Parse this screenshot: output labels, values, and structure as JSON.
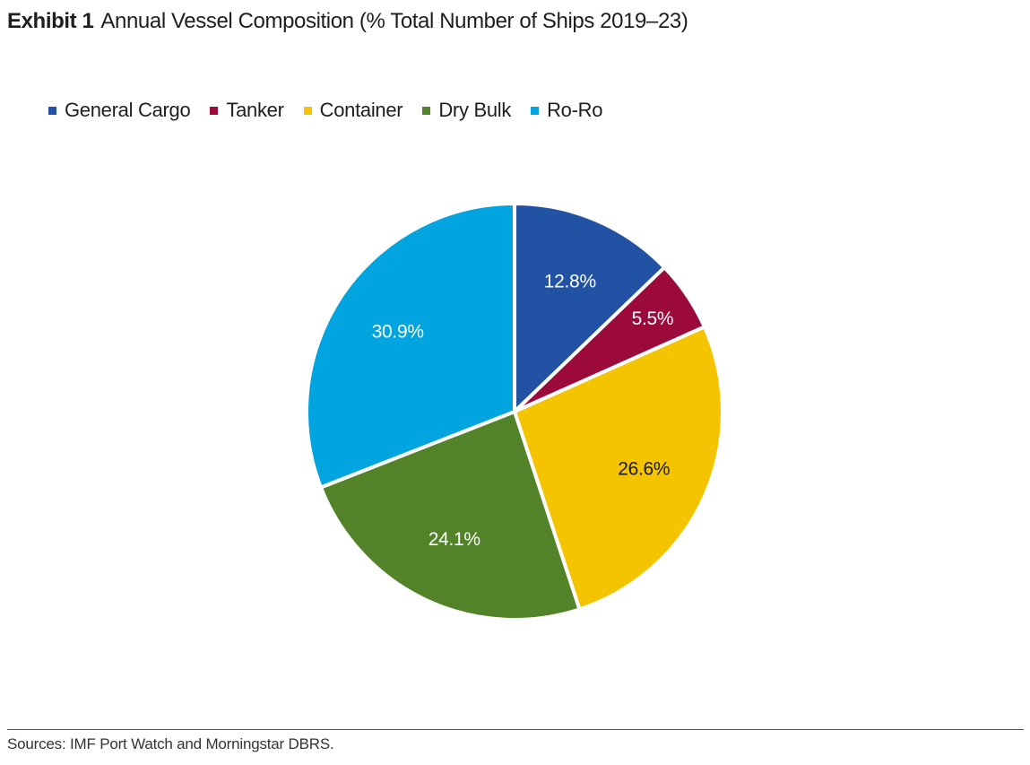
{
  "header": {
    "exhibit": "Exhibit 1",
    "title": "Annual Vessel Composition (% Total Number of Ships 2019–23)"
  },
  "chart_data": {
    "type": "pie",
    "title": "Annual Vessel Composition (% Total Number of Ships 2019–23)",
    "legend_position": "top-left",
    "categories": [
      "General Cargo",
      "Tanker",
      "Container",
      "Dry Bulk",
      "Ro-Ro"
    ],
    "values": [
      12.8,
      5.5,
      26.6,
      24.1,
      30.9
    ],
    "labels": [
      "12.8%",
      "5.5%",
      "26.6%",
      "24.1%",
      "30.9%"
    ],
    "colors": [
      "#2152a3",
      "#9b0a3a",
      "#f5c400",
      "#528329",
      "#00a5e0"
    ],
    "label_colors": [
      "#ffffff",
      "#ffffff",
      "#1a1a1a",
      "#ffffff",
      "#ffffff"
    ]
  },
  "footer": {
    "source": "Sources: IMF Port Watch and Morningstar DBRS."
  }
}
